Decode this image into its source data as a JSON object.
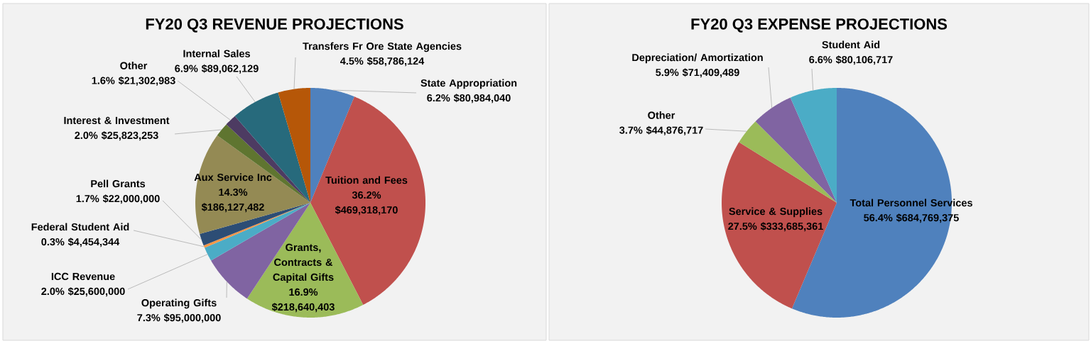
{
  "chart_data": [
    {
      "type": "pie",
      "title": "FY20 Q3 REVENUE PROJECTIONS",
      "categories": [
        "State Appropriation",
        "Tuition and Fees",
        "Grants, Contracts & Capital Gifts",
        "Operating Gifts",
        "ICC Revenue",
        "Federal Student Aid",
        "Pell Grants",
        "Aux Service Inc",
        "Interest & Investment",
        "Other",
        "Internal Sales",
        "Transfers Fr Ore State Agencies"
      ],
      "values": [
        80984040,
        469318170,
        218640403,
        95000000,
        25600000,
        4454344,
        22000000,
        186127482,
        25823253,
        21302983,
        89062129,
        58786124
      ],
      "value_labels": [
        "6.2% $80,984,040",
        "36.2% $469,318,170",
        "16.9% $218,640,403",
        "7.3% $95,000,000",
        "2.0% $25,600,000",
        "0.3% $4,454,344",
        "1.7% $22,000,000",
        "14.3% $186,127,482",
        "2.0% $25,823,253",
        "1.6% $21,302,983",
        "6.9% $89,062,129",
        "4.5% $58,786,124"
      ],
      "colors": [
        "#4f81bd",
        "#c0504d",
        "#9bbb59",
        "#8064a2",
        "#4bacc6",
        "#f79646",
        "#2c4d75",
        "#948a54",
        "#5f7530",
        "#4d3b62",
        "#276a7c",
        "#b65708"
      ]
    },
    {
      "type": "pie",
      "title": "FY20 Q3 EXPENSE PROJECTIONS",
      "categories": [
        "Total Personnel Services",
        "Service & Supplies",
        "Other",
        "Depreciation/ Amortization",
        "Student Aid"
      ],
      "values": [
        684769375,
        333685361,
        44876717,
        71409489,
        80106717
      ],
      "value_labels": [
        "56.4% $684,769,375",
        "27.5% $333,685,361",
        "3.7% $44,876,717",
        "5.9% $71,409,489",
        "6.6% $80,106,717"
      ],
      "colors": [
        "#4f81bd",
        "#c0504d",
        "#9bbb59",
        "#8064a2",
        "#4bacc6"
      ]
    }
  ]
}
